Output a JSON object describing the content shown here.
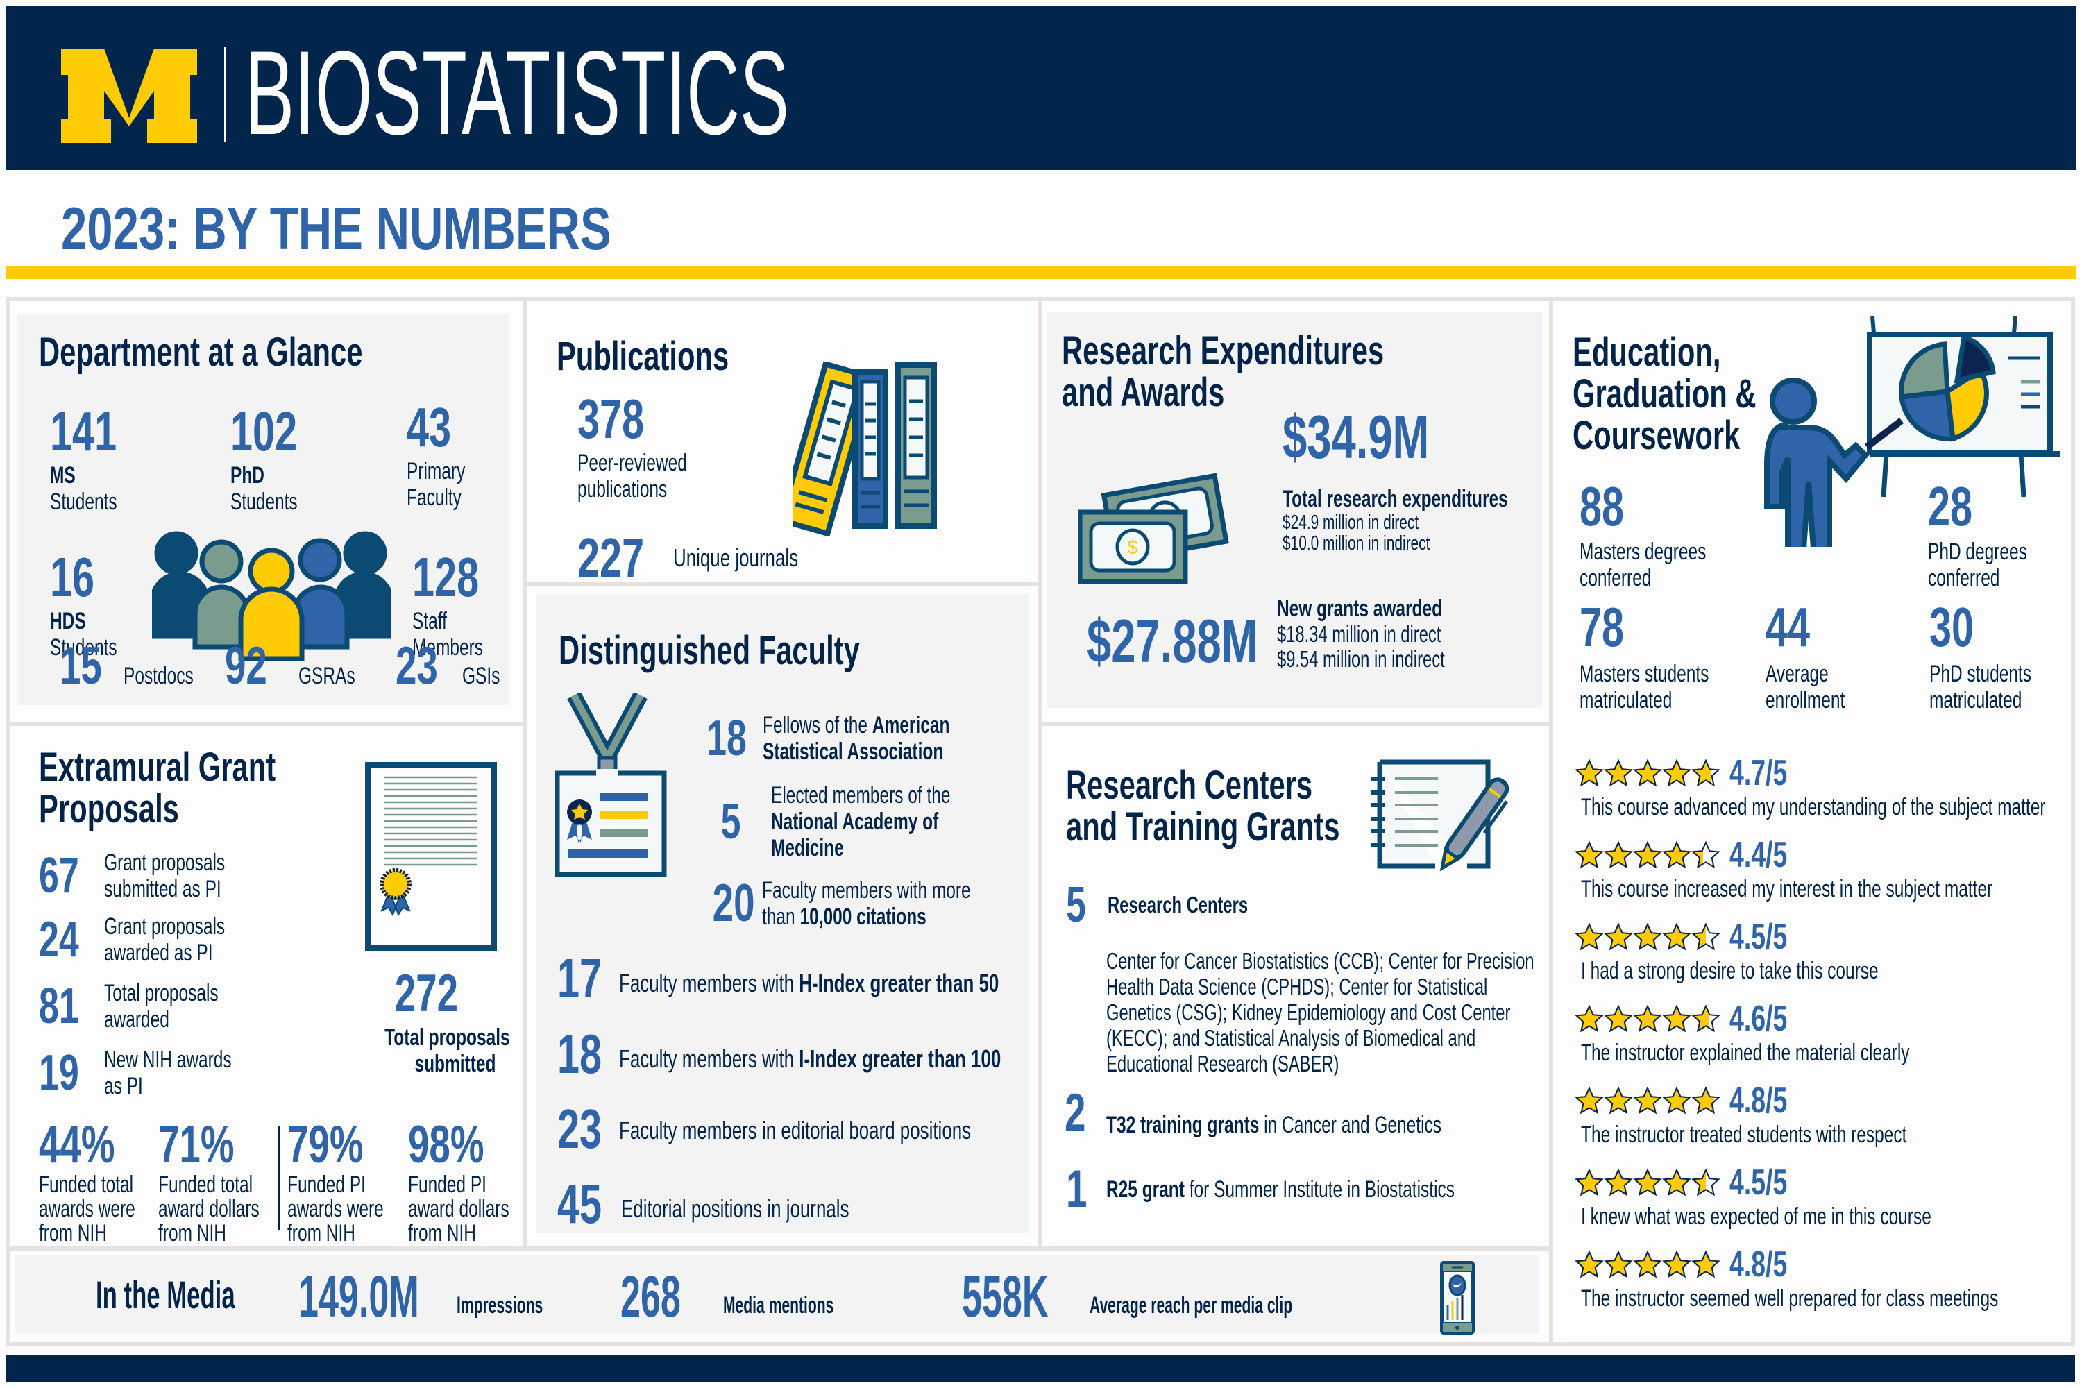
{
  "header": {
    "logo_letter": "M",
    "title": "BIOSTATISTICS"
  },
  "subtitle": "2023: BY THE NUMBERS",
  "colors": {
    "navy": "#02264b",
    "maize": "#ffcb05",
    "blue": "#2f64a8",
    "panel_gray": "#f3f3f3",
    "sage": "#7a9c8f",
    "teal_dark": "#0b4a73"
  },
  "department": {
    "title": "Department at a Glance",
    "stats": [
      {
        "value": "141",
        "bold": "MS",
        "label": "Students"
      },
      {
        "value": "102",
        "bold": "PhD",
        "label": "Students"
      },
      {
        "value": "43",
        "bold": "",
        "label": "Primary Faculty",
        "line1": "Primary",
        "line2": "Faculty"
      },
      {
        "value": "16",
        "bold": "HDS",
        "label": "Students"
      },
      {
        "value": "128",
        "bold": "",
        "label": "Staff Members",
        "line1": "Staff",
        "line2": "Members"
      },
      {
        "value": "15",
        "label": "Postdocs"
      },
      {
        "value": "92",
        "label": "GSRAs"
      },
      {
        "value": "23",
        "label": "GSIs"
      }
    ],
    "icon": "people-group-icon"
  },
  "grants": {
    "title_line1": "Extramural Grant",
    "title_line2": "Proposals",
    "items": [
      {
        "value": "67",
        "line1": "Grant proposals",
        "line2": "submitted as PI"
      },
      {
        "value": "24",
        "line1": "Grant proposals",
        "line2": "awarded as PI"
      },
      {
        "value": "81",
        "line1": "Total proposals",
        "line2": "awarded"
      },
      {
        "value": "19",
        "line1": "New NIH awards",
        "line2": "as PI"
      }
    ],
    "total": {
      "value": "272",
      "line1": "Total proposals",
      "line2": "submitted"
    },
    "percents": [
      {
        "value": "44%",
        "line1": "Funded total",
        "line2": "awards were",
        "line3": "from NIH"
      },
      {
        "value": "71%",
        "line1": "Funded total",
        "line2": "award dollars",
        "line3": "from NIH"
      },
      {
        "value": "79%",
        "line1": "Funded PI",
        "line2": "awards were",
        "line3": "from NIH"
      },
      {
        "value": "98%",
        "line1": "Funded PI",
        "line2": "award dollars",
        "line3": "from NIH"
      }
    ],
    "icon": "certificate-icon"
  },
  "publications": {
    "title": "Publications",
    "peer_value": "378",
    "peer_line1": "Peer-reviewed",
    "peer_line2": "publications",
    "journals_value": "227",
    "journals_label": "Unique journals",
    "icon": "binders-icon"
  },
  "faculty": {
    "title": "Distinguished Faculty",
    "top": [
      {
        "value": "18",
        "line1_pre": "Fellows of the ",
        "line1_bold": "American",
        "line2_bold": "Statistical Association"
      },
      {
        "value": "5",
        "line1_pre": "Elected members of the",
        "line2_bold": "National Academy of",
        "line3_bold": "Medicine"
      },
      {
        "value": "20",
        "line1_pre": "Faculty members with more",
        "line2_pre": "than ",
        "line2_bold": "10,000 citations"
      }
    ],
    "rows": [
      {
        "value": "17",
        "pre": "Faculty members with ",
        "bold": "H-Index greater than 50"
      },
      {
        "value": "18",
        "pre": "Faculty members with ",
        "bold": "I-Index greater than 100"
      },
      {
        "value": "23",
        "pre": "Faculty members in editorial board positions",
        "bold": ""
      },
      {
        "value": "45",
        "pre": "Editorial positions in journals",
        "bold": ""
      }
    ],
    "icon": "id-badge-icon"
  },
  "research": {
    "title_line1": "Research Expenditures",
    "title_line2": "and Awards",
    "expend_value": "$34.9M",
    "expend_label": "Total research expenditures",
    "expend_direct": "$24.9 million in direct",
    "expend_indirect": "$10.0 million in indirect",
    "grants_value": "$27.88M",
    "grants_label": "New grants awarded",
    "grants_direct": "$18.34 million in direct",
    "grants_indirect": "$9.54 million in indirect",
    "icon": "money-bills-icon"
  },
  "centers": {
    "title_line1": "Research Centers",
    "title_line2": "and Training Grants",
    "centers_value": "5",
    "centers_label": "Research Centers",
    "centers_list": "Center for Cancer Biostatistics (CCB); Center for Precision Health Data Science (CPHDS); Center for Statistical Genetics (CSG); Kidney Epidemiology and Cost Center (KECC); and Statistical Analysis of Biomedical and Educational Research (SABER)",
    "t32_value": "2",
    "t32_bold": "T32 training grants",
    "t32_rest": " in Cancer and Genetics",
    "r25_value": "1",
    "r25_bold": "R25 grant",
    "r25_rest": " for Summer Institute in Biostatistics",
    "icon": "notepad-pen-icon"
  },
  "education": {
    "title_line1": "Education,",
    "title_line2": "Graduation &",
    "title_line3": "Coursework",
    "stats": [
      {
        "value": "88",
        "line1": "Masters degrees",
        "line2": "conferred"
      },
      {
        "value": "28",
        "line1": "PhD degrees",
        "line2": "conferred"
      },
      {
        "value": "78",
        "line1": "Masters students",
        "line2": "matriculated"
      },
      {
        "value": "44",
        "line1": "Average",
        "line2": "enrollment"
      },
      {
        "value": "30",
        "line1": "PhD students",
        "line2": "matriculated"
      }
    ],
    "icon": "presenter-pie-chart-icon",
    "ratings": [
      {
        "score": "4.7/5",
        "rating": 4.7,
        "text": "This course advanced my understanding of the subject matter"
      },
      {
        "score": "4.4/5",
        "rating": 4.4,
        "text": "This course increased my interest in the subject matter"
      },
      {
        "score": "4.5/5",
        "rating": 4.5,
        "text": "I had a strong desire to take this course"
      },
      {
        "score": "4.6/5",
        "rating": 4.6,
        "text": "The instructor explained the material clearly"
      },
      {
        "score": "4.8/5",
        "rating": 4.8,
        "text": "The instructor treated students with respect"
      },
      {
        "score": "4.5/5",
        "rating": 4.5,
        "text": "I knew what was expected of me in this course"
      },
      {
        "score": "4.8/5",
        "rating": 4.8,
        "text": "The instructor seemed well prepared for class meetings"
      }
    ]
  },
  "media": {
    "title": "In the Media",
    "impressions_value": "149.0M",
    "impressions_label": "Impressions",
    "mentions_value": "268",
    "mentions_label": "Media mentions",
    "reach_value": "558K",
    "reach_label": "Average reach per media clip",
    "icon": "smartphone-twitter-icon"
  }
}
